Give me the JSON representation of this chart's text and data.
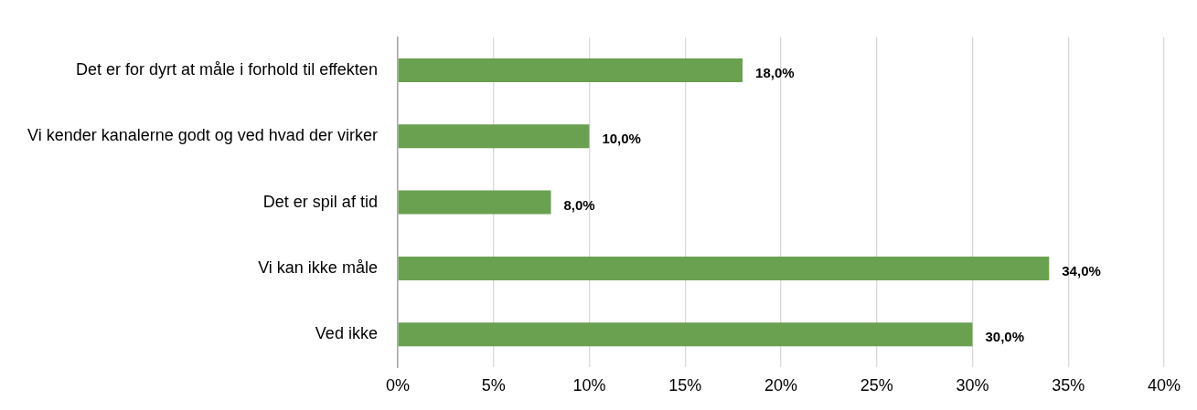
{
  "chart_data": {
    "type": "bar",
    "orientation": "horizontal",
    "categories": [
      "Det er for dyrt at måle i forhold til effekten",
      "Vi kender kanalerne godt og ved hvad der virker",
      "Det er spil af tid",
      "Vi kan ikke måle",
      "Ved ikke"
    ],
    "values": [
      18,
      10,
      8,
      34,
      30
    ],
    "value_labels": [
      "18,0%",
      "10,0%",
      "8,0%",
      "34,0%",
      "30,0%"
    ],
    "color": "#6aa150",
    "xlim": [
      0,
      40
    ],
    "xticks": [
      {
        "value": 0,
        "label": "0%"
      },
      {
        "value": 5,
        "label": "5%"
      },
      {
        "value": 10,
        "label": "10%"
      },
      {
        "value": 15,
        "label": "15%"
      },
      {
        "value": 20,
        "label": "20%"
      },
      {
        "value": 25,
        "label": "25%"
      },
      {
        "value": 30,
        "label": "30%"
      },
      {
        "value": 35,
        "label": "35%"
      },
      {
        "value": 40,
        "label": "40%"
      }
    ],
    "grid": "x"
  }
}
